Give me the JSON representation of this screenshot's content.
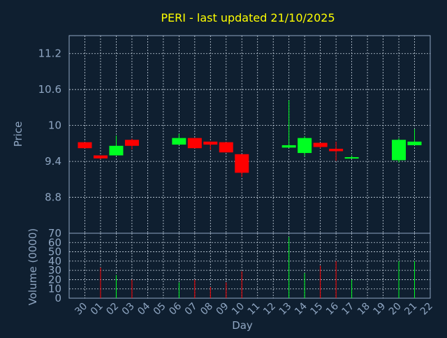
{
  "title": "PERI - last updated 21/10/2025",
  "colors": {
    "background": "#0f1f30",
    "axis": "#8fa6c2",
    "title": "#ffff00",
    "up": "#00ff22",
    "down": "#ff0000",
    "grid": "#c8d4e0"
  },
  "chart_data": [
    {
      "type": "candlestick",
      "title": "PERI - last updated 21/10/2025",
      "ylabel": "Price",
      "ylim": [
        8.2,
        11.5
      ],
      "yticks": [
        8.8,
        9.4,
        10,
        10.6,
        11.2
      ],
      "grid": true,
      "categories": [
        "30",
        "01",
        "02",
        "03",
        "04",
        "05",
        "06",
        "07",
        "08",
        "09",
        "10",
        "11",
        "12",
        "13",
        "14",
        "15",
        "16",
        "17",
        "18",
        "19",
        "20",
        "21",
        "22"
      ],
      "candles": [
        {
          "day": "30",
          "open": 9.72,
          "high": 9.72,
          "low": 9.62,
          "close": 9.62
        },
        {
          "day": "01",
          "open": 9.5,
          "high": 9.5,
          "low": 9.44,
          "close": 9.45
        },
        {
          "day": "02",
          "open": 9.5,
          "high": 9.83,
          "low": 9.5,
          "close": 9.66
        },
        {
          "day": "03",
          "open": 9.76,
          "high": 9.78,
          "low": 9.6,
          "close": 9.66
        },
        {
          "day": "06",
          "open": 9.68,
          "high": 9.86,
          "low": 9.68,
          "close": 9.79
        },
        {
          "day": "07",
          "open": 9.79,
          "high": 9.79,
          "low": 9.62,
          "close": 9.62
        },
        {
          "day": "08",
          "open": 9.73,
          "high": 9.73,
          "low": 9.59,
          "close": 9.68
        },
        {
          "day": "09",
          "open": 9.72,
          "high": 9.72,
          "low": 9.55,
          "close": 9.55
        },
        {
          "day": "10",
          "open": 9.52,
          "high": 9.52,
          "low": 9.14,
          "close": 9.21
        },
        {
          "day": "13",
          "open": 9.63,
          "high": 10.42,
          "low": 9.63,
          "close": 9.67
        },
        {
          "day": "14",
          "open": 9.54,
          "high": 9.82,
          "low": 9.49,
          "close": 9.79
        },
        {
          "day": "15",
          "open": 9.71,
          "high": 9.71,
          "low": 9.62,
          "close": 9.64
        },
        {
          "day": "16",
          "open": 9.61,
          "high": 9.73,
          "low": 9.41,
          "close": 9.57
        },
        {
          "day": "17",
          "open": 9.45,
          "high": 9.5,
          "low": 9.45,
          "close": 9.47
        },
        {
          "day": "20",
          "open": 9.42,
          "high": 9.79,
          "low": 9.38,
          "close": 9.76
        },
        {
          "day": "21",
          "open": 9.67,
          "high": 9.94,
          "low": 9.67,
          "close": 9.73
        }
      ]
    },
    {
      "type": "bar",
      "ylabel": "Volume (0000)",
      "xlabel": "Day",
      "ylim": [
        0,
        70
      ],
      "yticks": [
        0,
        10,
        20,
        30,
        40,
        50,
        60,
        70
      ],
      "grid": true,
      "categories": [
        "30",
        "01",
        "02",
        "03",
        "04",
        "05",
        "06",
        "07",
        "08",
        "09",
        "10",
        "11",
        "12",
        "13",
        "14",
        "15",
        "16",
        "17",
        "18",
        "19",
        "20",
        "21",
        "22"
      ],
      "bars": [
        {
          "day": "01",
          "value": 33,
          "direction": "down"
        },
        {
          "day": "02",
          "value": 25,
          "direction": "up"
        },
        {
          "day": "03",
          "value": 20,
          "direction": "down"
        },
        {
          "day": "06",
          "value": 17,
          "direction": "up"
        },
        {
          "day": "07",
          "value": 20,
          "direction": "down"
        },
        {
          "day": "08",
          "value": 12,
          "direction": "down"
        },
        {
          "day": "09",
          "value": 17,
          "direction": "down"
        },
        {
          "day": "10",
          "value": 29,
          "direction": "down"
        },
        {
          "day": "13",
          "value": 66,
          "direction": "up"
        },
        {
          "day": "14",
          "value": 27,
          "direction": "up"
        },
        {
          "day": "15",
          "value": 35,
          "direction": "down"
        },
        {
          "day": "16",
          "value": 40,
          "direction": "down"
        },
        {
          "day": "17",
          "value": 20,
          "direction": "up"
        },
        {
          "day": "20",
          "value": 40,
          "direction": "up"
        },
        {
          "day": "21",
          "value": 40,
          "direction": "up"
        }
      ]
    }
  ]
}
